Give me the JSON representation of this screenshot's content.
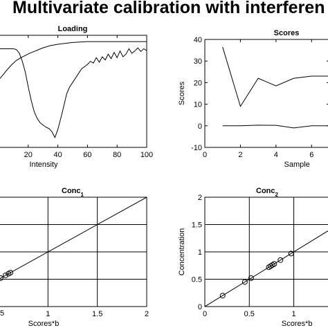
{
  "page_title": "Multivariate calibration with interferen",
  "chart_data": [
    {
      "id": "loading",
      "type": "line",
      "title": "Loading",
      "title_sub": "",
      "xlabel": "Intensity",
      "ylabel": "",
      "xlim": [
        0,
        100
      ],
      "xticks": [
        20,
        40,
        60,
        80,
        100
      ],
      "grid": false,
      "series": [
        {
          "x": [
            0,
            3,
            6,
            9,
            12,
            15,
            18,
            21,
            24,
            27,
            30,
            35,
            40,
            45,
            50,
            55,
            60,
            65,
            70,
            75,
            80,
            85,
            90,
            95,
            100
          ],
          "y": [
            -0.3,
            -0.18,
            -0.06,
            0.05,
            0.14,
            0.2,
            0.25,
            0.3,
            0.34,
            0.38,
            0.42,
            0.47,
            0.5,
            0.52,
            0.54,
            0.55,
            0.56,
            0.56,
            0.56,
            0.56,
            0.56,
            0.56,
            0.56,
            0.56,
            0.56
          ]
        },
        {
          "x": [
            0,
            2,
            4,
            6,
            8,
            10,
            12,
            14,
            16,
            18,
            20,
            22,
            24,
            26,
            28,
            30,
            32,
            34,
            36,
            38,
            40,
            42,
            44,
            46,
            48,
            50,
            52,
            54,
            56,
            58,
            60,
            62,
            64,
            66,
            68,
            70,
            72,
            74,
            76,
            78,
            80,
            82,
            84,
            86,
            88,
            90,
            92,
            94,
            96,
            98,
            100
          ],
          "y": [
            0.4,
            0.4,
            0.4,
            0.4,
            0.4,
            0.4,
            0.38,
            0.3,
            0.12,
            -0.12,
            -0.45,
            -0.75,
            -1.0,
            -1.15,
            -1.25,
            -1.3,
            -1.35,
            -1.38,
            -1.45,
            -1.58,
            -1.4,
            -1.15,
            -0.88,
            -0.6,
            -0.45,
            -0.35,
            -0.25,
            -0.15,
            -0.05,
            0.0,
            0.05,
            0.12,
            0.08,
            0.2,
            0.1,
            0.22,
            0.15,
            0.28,
            0.18,
            0.32,
            0.2,
            0.35,
            0.22,
            0.28,
            0.4,
            0.3,
            0.35,
            0.42,
            0.34,
            0.4,
            0.36
          ]
        }
      ]
    },
    {
      "id": "scores",
      "type": "line",
      "title": "Scores",
      "title_sub": "",
      "xlabel": "Sample",
      "ylabel": "Scores",
      "xlim": [
        0,
        7
      ],
      "ylim": [
        -10,
        40
      ],
      "xticks": [
        0,
        2,
        4,
        6
      ],
      "yticks": [
        -10,
        0,
        10,
        20,
        30,
        40
      ],
      "grid": false,
      "series": [
        {
          "x": [
            1,
            2,
            3,
            4,
            5,
            6,
            7
          ],
          "y": [
            36.5,
            9,
            22,
            18.5,
            22,
            23,
            23
          ]
        },
        {
          "x": [
            1,
            2,
            3,
            4,
            5,
            6,
            7
          ],
          "y": [
            0,
            0,
            0.3,
            0.2,
            -1,
            0,
            0
          ]
        }
      ]
    },
    {
      "id": "conc1",
      "type": "scatter",
      "title": "Conc",
      "title_sub": "1",
      "xlabel": "Scores*b",
      "ylabel": "",
      "xlim": [
        0.5,
        2
      ],
      "ylim": [
        0,
        2
      ],
      "xticks": [
        1,
        1.5,
        2
      ],
      "xtick_labels": [
        "1",
        "1.5",
        "2"
      ],
      "yticks": [
        0.5,
        1,
        1.5
      ],
      "grid": true,
      "series": [
        {
          "name": "",
          "x": [
            0.52,
            0.57,
            0.6,
            0.62
          ],
          "y": [
            0.52,
            0.57,
            0.6,
            0.62
          ]
        }
      ],
      "fit_line": [
        [
          0,
          0
        ],
        [
          2,
          2
        ]
      ]
    },
    {
      "id": "conc2",
      "type": "scatter",
      "title": "Conc",
      "title_sub": "2",
      "xlabel": "Scores*b",
      "ylabel": "Concentration",
      "xlim": [
        0,
        1.4
      ],
      "ylim": [
        0,
        2
      ],
      "xticks": [
        0,
        0.5,
        1
      ],
      "yticks": [
        0,
        0.5,
        1,
        1.5,
        2
      ],
      "grid": true,
      "series": [
        {
          "name": "",
          "x": [
            0.2,
            0.45,
            0.52,
            0.72,
            0.74,
            0.76,
            0.78,
            0.85,
            0.97
          ],
          "y": [
            0.2,
            0.45,
            0.52,
            0.72,
            0.74,
            0.76,
            0.78,
            0.85,
            0.97
          ]
        }
      ],
      "fit_line": [
        [
          0,
          0
        ],
        [
          1.4,
          1.4
        ]
      ]
    }
  ]
}
